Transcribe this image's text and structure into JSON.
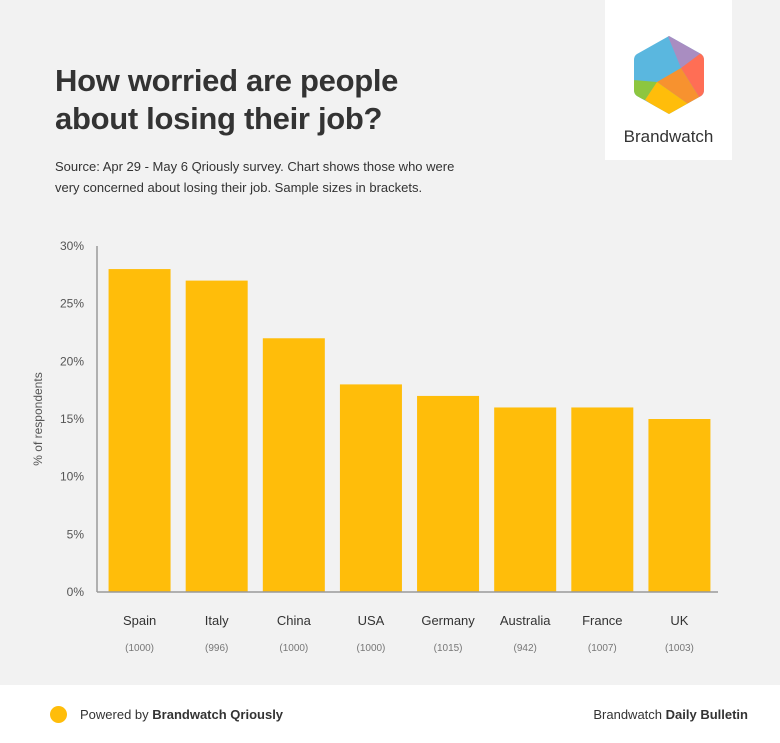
{
  "header": {
    "title_line1": "How worried are people",
    "title_line2": "about losing their job?",
    "subtitle_line1": "Source: Apr 29 - May 6 Qriously survey. Chart shows those who were",
    "subtitle_line2": "very concerned about losing their job. Sample sizes in brackets."
  },
  "logo": {
    "name": "Brandwatch",
    "icon": "brandwatch-hexagon-logo",
    "colors": [
      "#5ab7df",
      "#a98dc1",
      "#ff6e55",
      "#f7922f",
      "#ffbd0a",
      "#8dc63f"
    ]
  },
  "footer": {
    "powered_prefix": "Powered by",
    "powered_brand": "Brandwatch Qriously",
    "bulletin_prefix": "Brandwatch",
    "bulletin_brand": "Daily Bulletin",
    "dot_color": "#ffbd0a"
  },
  "chart_data": {
    "type": "bar",
    "title": "How worried are people about losing their job?",
    "xlabel": "",
    "ylabel": "% of respondents",
    "categories": [
      "Spain",
      "Italy",
      "China",
      "USA",
      "Germany",
      "Australia",
      "France",
      "UK"
    ],
    "sample_sizes": [
      "(1000)",
      "(996)",
      "(1000)",
      "(1000)",
      "(1015)",
      "(942)",
      "(1007)",
      "(1003)"
    ],
    "values": [
      28,
      27,
      22,
      18,
      17,
      16,
      16,
      15
    ],
    "unit": "%",
    "ylim": [
      0,
      30
    ],
    "yticks": [
      0,
      5,
      10,
      15,
      20,
      25,
      30
    ],
    "ytick_labels": [
      "0%",
      "5%",
      "10%",
      "15%",
      "20%",
      "25%",
      "30%"
    ],
    "grid": false,
    "legend": "none",
    "bar_color": "#ffbd0a"
  }
}
